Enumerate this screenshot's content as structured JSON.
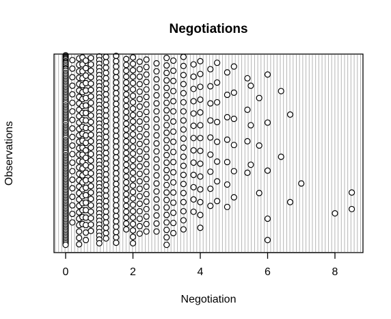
{
  "chart_data": {
    "type": "scatter",
    "title": "Negotiations",
    "xlabel": "Negotiation",
    "ylabel": "Observations",
    "xlim": [
      -0.35,
      8.85
    ],
    "x_ticks": [
      0,
      2,
      4,
      6,
      8
    ],
    "tick_labels": [
      "0",
      "2",
      "4",
      "6",
      "8"
    ],
    "grid": "dense vertical gray background lines",
    "colors": {
      "grid_line": "#b3b3b3",
      "frame": "#000000",
      "point_stroke": "#000000",
      "point_fill": "#ffffff"
    },
    "x": [
      0,
      0,
      0,
      0,
      0,
      0,
      0,
      0,
      0,
      0,
      0,
      0,
      0,
      0,
      0,
      0,
      0,
      0,
      0,
      0,
      0,
      0,
      0,
      0,
      0,
      0,
      0,
      0,
      0,
      0,
      0,
      0,
      0,
      0,
      0,
      0,
      0,
      0,
      0,
      0,
      0,
      0,
      0,
      0,
      0,
      0,
      0,
      0,
      0,
      0,
      0,
      0,
      0,
      0,
      0,
      0,
      0,
      0,
      0,
      0,
      0,
      0,
      0,
      0,
      0,
      0,
      0,
      0,
      0,
      0,
      0,
      0,
      0,
      0,
      0,
      0,
      0,
      0,
      0,
      0,
      0,
      0,
      0,
      0,
      0,
      0,
      0,
      0,
      0,
      0,
      0,
      0,
      0,
      0,
      0,
      0,
      0,
      0,
      0,
      0,
      0,
      0,
      0,
      0,
      0,
      0,
      0,
      0,
      0,
      0,
      0,
      0,
      0,
      0,
      0,
      0,
      0,
      0,
      0,
      0,
      0.2,
      0.2,
      0.2,
      0.2,
      0.2,
      0.2,
      0.2,
      0.2,
      0.2,
      0.2,
      0.2,
      0.2,
      0.2,
      0.2,
      0.2,
      0.2,
      0.2,
      0.2,
      0.2,
      0.2,
      0.4,
      0.4,
      0.4,
      0.4,
      0.4,
      0.4,
      0.4,
      0.4,
      0.4,
      0.4,
      0.4,
      0.4,
      0.4,
      0.4,
      0.4,
      0.4,
      0.4,
      0.4,
      0.4,
      0.4,
      0.4,
      0.4,
      0.4,
      0.4,
      0.4,
      0.4,
      0.4,
      0.4,
      0.4,
      0.4,
      0.5,
      0.5,
      0.5,
      0.5,
      0.5,
      0.5,
      0.5,
      0.5,
      0.5,
      0.5,
      0.5,
      0.5,
      0.5,
      0.5,
      0.5,
      0.5,
      0.5,
      0.5,
      0.5,
      0.5,
      0.5,
      0.5,
      0.5,
      0.5,
      0.5,
      0.6,
      0.6,
      0.6,
      0.6,
      0.6,
      0.6,
      0.6,
      0.6,
      0.6,
      0.6,
      0.6,
      0.6,
      0.6,
      0.6,
      0.6,
      0.6,
      0.6,
      0.6,
      0.6,
      0.6,
      0.6,
      0.6,
      0.6,
      0.6,
      0.6,
      0.75,
      0.75,
      0.75,
      0.75,
      0.75,
      0.75,
      0.75,
      0.75,
      0.75,
      0.75,
      0.75,
      0.75,
      0.75,
      0.75,
      0.75,
      0.75,
      0.75,
      0.75,
      0.75,
      0.75,
      0.75,
      0.75,
      0.75,
      0.75,
      0.75,
      0.75,
      0.75,
      0.75,
      1,
      1,
      1,
      1,
      1,
      1,
      1,
      1,
      1,
      1,
      1,
      1,
      1,
      1,
      1,
      1,
      1,
      1,
      1,
      1,
      1,
      1,
      1,
      1,
      1,
      1,
      1,
      1,
      1,
      1,
      1,
      1,
      1,
      1,
      1,
      1,
      1,
      1,
      1,
      1,
      1,
      1,
      1,
      1,
      1,
      1,
      1,
      1,
      1,
      1,
      1,
      1.2,
      1.2,
      1.2,
      1.2,
      1.2,
      1.2,
      1.2,
      1.2,
      1.2,
      1.2,
      1.2,
      1.2,
      1.2,
      1.2,
      1.2,
      1.2,
      1.2,
      1.2,
      1.2,
      1.2,
      1.2,
      1.2,
      1.2,
      1.2,
      1.2,
      1.2,
      1.2,
      1.2,
      1.2,
      1.2,
      1.2,
      1.2,
      1.2,
      1.2,
      1.2,
      1.5,
      1.5,
      1.5,
      1.5,
      1.5,
      1.5,
      1.5,
      1.5,
      1.5,
      1.5,
      1.5,
      1.5,
      1.5,
      1.5,
      1.5,
      1.5,
      1.5,
      1.5,
      1.5,
      1.5,
      1.5,
      1.5,
      1.5,
      1.5,
      1.5,
      1.5,
      1.5,
      1.5,
      1.5,
      1.5,
      1.5,
      1.5,
      1.5,
      1.5,
      1.5,
      1.5,
      1.8,
      1.8,
      1.8,
      1.8,
      1.8,
      1.8,
      1.8,
      1.8,
      1.8,
      1.8,
      1.8,
      1.8,
      1.8,
      1.8,
      1.8,
      1.8,
      1.8,
      1.8,
      1.8,
      1.8,
      1.8,
      1.8,
      1.8,
      1.8,
      1.8,
      1.8,
      1.8,
      1.8,
      1.8,
      1.8,
      2,
      2,
      2,
      2,
      2,
      2,
      2,
      2,
      2,
      2,
      2,
      2,
      2,
      2,
      2,
      2,
      2,
      2,
      2,
      2,
      2,
      2,
      2,
      2,
      2,
      2,
      2,
      2,
      2,
      2,
      2.2,
      2.2,
      2.2,
      2.2,
      2.2,
      2.2,
      2.2,
      2.2,
      2.2,
      2.2,
      2.2,
      2.2,
      2.2,
      2.2,
      2.2,
      2.2,
      2.2,
      2.2,
      2.2,
      2.2,
      2.2,
      2.2,
      2.2,
      2.2,
      2.4,
      2.4,
      2.4,
      2.4,
      2.4,
      2.4,
      2.4,
      2.4,
      2.4,
      2.4,
      2.4,
      2.4,
      2.4,
      2.4,
      2.4,
      2.4,
      2.4,
      2.4,
      2.4,
      2.4,
      2.4,
      2.4,
      2.4,
      2.4,
      2.7,
      2.7,
      2.7,
      2.7,
      2.7,
      2.7,
      2.7,
      2.7,
      2.7,
      2.7,
      2.7,
      2.7,
      2.7,
      2.7,
      2.7,
      2.7,
      2.7,
      2.7,
      2.7,
      2.7,
      2.7,
      2.7,
      3,
      3,
      3,
      3,
      3,
      3,
      3,
      3,
      3,
      3,
      3,
      3,
      3,
      3,
      3,
      3,
      3,
      3,
      3,
      3,
      3,
      3,
      3,
      3,
      3,
      3,
      3.2,
      3.2,
      3.2,
      3.2,
      3.2,
      3.2,
      3.2,
      3.2,
      3.2,
      3.2,
      3.2,
      3.2,
      3.2,
      3.2,
      3.2,
      3.2,
      3.2,
      3.2,
      3.5,
      3.5,
      3.5,
      3.5,
      3.5,
      3.5,
      3.5,
      3.5,
      3.5,
      3.5,
      3.5,
      3.5,
      3.5,
      3.5,
      3.5,
      3.5,
      3.5,
      3.5,
      3.5,
      3.5,
      3.8,
      3.8,
      3.8,
      3.8,
      3.8,
      3.8,
      3.8,
      3.8,
      3.8,
      3.8,
      3.8,
      3.8,
      3.8,
      4,
      4,
      4,
      4,
      4,
      4,
      4,
      4,
      4,
      4,
      4,
      4,
      4,
      4,
      4.3,
      4.3,
      4.3,
      4.3,
      4.3,
      4.3,
      4.3,
      4.3,
      4.3,
      4.5,
      4.5,
      4.5,
      4.5,
      4.5,
      4.5,
      4.5,
      4.5,
      4.8,
      4.8,
      4.8,
      4.8,
      4.8,
      4.8,
      4.8,
      5,
      5,
      5,
      5,
      5,
      5,
      5.4,
      5.4,
      5.4,
      5.4,
      5.5,
      5.5,
      5.5,
      5.75,
      5.75,
      5.75,
      6,
      6,
      6,
      6,
      6,
      6.4,
      6.4,
      6.67,
      6.67,
      7,
      8,
      8.5,
      8.5
    ],
    "y": [
      1,
      3,
      5,
      7,
      9,
      12,
      14,
      16,
      19,
      22,
      25,
      27,
      30,
      34,
      37,
      40,
      43,
      46,
      49,
      52,
      55,
      58,
      61,
      64,
      67,
      70,
      73,
      76,
      79,
      82,
      85,
      88,
      91,
      95,
      98,
      101,
      104,
      107,
      110,
      113,
      116,
      119,
      122,
      125,
      128,
      132,
      135,
      138,
      141,
      144,
      147,
      150,
      153,
      156,
      160,
      163,
      166,
      169,
      172,
      175,
      178,
      181,
      184,
      188,
      191,
      194,
      197,
      200,
      203,
      206,
      209,
      212,
      215,
      218,
      221,
      224,
      227,
      230,
      233,
      236,
      239,
      242,
      245,
      248,
      251,
      254,
      257,
      260,
      263,
      266,
      269,
      272,
      275,
      278,
      281,
      284,
      287,
      290,
      293,
      296,
      299,
      302,
      305,
      308,
      311,
      314,
      317,
      320,
      323,
      326,
      329,
      332,
      335,
      338,
      341,
      344,
      347,
      350,
      353,
      356,
      10,
      26,
      42,
      58,
      74,
      90,
      106,
      122,
      138,
      154,
      170,
      186,
      202,
      218,
      234,
      250,
      266,
      282,
      298,
      314,
      7,
      19,
      31,
      43,
      55,
      67,
      79,
      91,
      103,
      115,
      127,
      139,
      151,
      163,
      175,
      187,
      199,
      211,
      223,
      235,
      247,
      259,
      271,
      283,
      295,
      307,
      319,
      331,
      343,
      355,
      5,
      18,
      31,
      44,
      57,
      70,
      83,
      96,
      109,
      122,
      135,
      148,
      161,
      174,
      187,
      200,
      213,
      226,
      239,
      252,
      265,
      278,
      291,
      304,
      317,
      11,
      25,
      39,
      53,
      67,
      81,
      95,
      109,
      123,
      137,
      151,
      165,
      179,
      193,
      207,
      221,
      235,
      249,
      263,
      277,
      291,
      305,
      319,
      333,
      347,
      6,
      18,
      30,
      42,
      54,
      66,
      78,
      90,
      102,
      114,
      126,
      138,
      150,
      162,
      174,
      186,
      198,
      210,
      222,
      234,
      246,
      258,
      270,
      282,
      294,
      306,
      318,
      330,
      3,
      10,
      17,
      24,
      31,
      38,
      45,
      52,
      59,
      66,
      73,
      80,
      87,
      94,
      101,
      108,
      115,
      122,
      129,
      136,
      143,
      150,
      157,
      164,
      171,
      178,
      185,
      192,
      199,
      206,
      213,
      220,
      227,
      234,
      241,
      248,
      255,
      262,
      269,
      276,
      283,
      290,
      297,
      304,
      311,
      318,
      325,
      332,
      339,
      346,
      353,
      4,
      14,
      24,
      34,
      44,
      54,
      64,
      74,
      84,
      94,
      104,
      114,
      124,
      134,
      144,
      154,
      164,
      174,
      184,
      194,
      204,
      214,
      224,
      234,
      244,
      254,
      264,
      274,
      284,
      294,
      304,
      314,
      324,
      334,
      344,
      2,
      12,
      22,
      32,
      42,
      52,
      62,
      72,
      82,
      92,
      102,
      112,
      122,
      132,
      142,
      152,
      162,
      172,
      182,
      192,
      202,
      212,
      222,
      232,
      242,
      252,
      262,
      272,
      282,
      292,
      302,
      312,
      322,
      332,
      342,
      352,
      8,
      19,
      30,
      41,
      52,
      63,
      74,
      85,
      96,
      107,
      118,
      129,
      140,
      151,
      162,
      173,
      184,
      195,
      206,
      217,
      228,
      239,
      250,
      261,
      272,
      283,
      294,
      305,
      316,
      327,
      5,
      17,
      29,
      41,
      53,
      65,
      77,
      89,
      101,
      113,
      125,
      137,
      149,
      161,
      173,
      185,
      197,
      209,
      221,
      233,
      245,
      257,
      269,
      281,
      293,
      305,
      317,
      329,
      341,
      353,
      13,
      27,
      41,
      55,
      69,
      83,
      97,
      111,
      125,
      139,
      153,
      167,
      181,
      195,
      209,
      223,
      237,
      251,
      265,
      279,
      293,
      307,
      321,
      335,
      9,
      23,
      37,
      51,
      65,
      79,
      93,
      107,
      121,
      135,
      149,
      163,
      177,
      191,
      205,
      219,
      233,
      247,
      261,
      275,
      289,
      303,
      317,
      331,
      16,
      31,
      46,
      61,
      76,
      91,
      106,
      121,
      136,
      151,
      166,
      181,
      196,
      211,
      226,
      241,
      256,
      271,
      286,
      301,
      316,
      331,
      6,
      20,
      34,
      48,
      62,
      76,
      90,
      104,
      118,
      132,
      146,
      160,
      174,
      188,
      202,
      216,
      230,
      244,
      258,
      272,
      286,
      300,
      314,
      328,
      342,
      356,
      11,
      30,
      49,
      68,
      87,
      106,
      125,
      144,
      163,
      182,
      201,
      220,
      239,
      258,
      277,
      296,
      315,
      334,
      4,
      21,
      38,
      55,
      72,
      89,
      106,
      123,
      140,
      157,
      174,
      191,
      208,
      225,
      242,
      259,
      276,
      293,
      310,
      327,
      18,
      41,
      64,
      87,
      110,
      133,
      156,
      179,
      202,
      225,
      248,
      271,
      294,
      12,
      36,
      60,
      84,
      108,
      132,
      156,
      180,
      204,
      228,
      252,
      276,
      300,
      324,
      27,
      59,
      91,
      123,
      155,
      187,
      219,
      251,
      283,
      15,
      52,
      89,
      126,
      163,
      200,
      237,
      274,
      33,
      75,
      117,
      159,
      201,
      243,
      285,
      22,
      71,
      120,
      169,
      218,
      267,
      44,
      103,
      162,
      221,
      58,
      132,
      206,
      81,
      170,
      259,
      37,
      127,
      217,
      307,
      347,
      68,
      191,
      112,
      276,
      241,
      297,
      258,
      289
    ]
  }
}
